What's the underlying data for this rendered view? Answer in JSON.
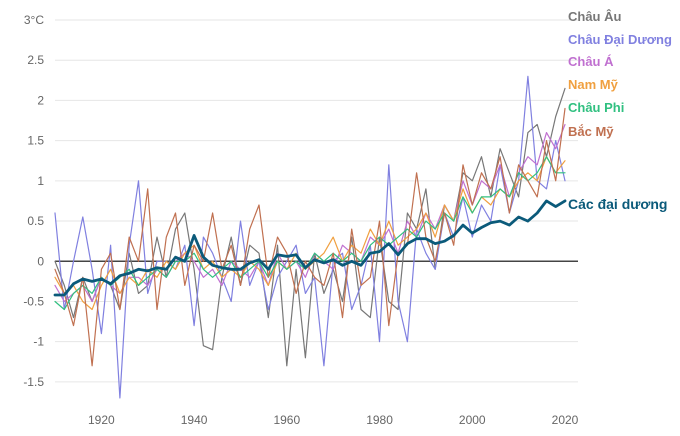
{
  "chart_data": {
    "type": "line",
    "title": "",
    "xlabel": "",
    "ylabel": "",
    "xlim": [
      1910,
      2020
    ],
    "ylim": [
      -1.75,
      3
    ],
    "y_unit_label": "°C",
    "grid": true,
    "legend_position": "right, labels at line ends",
    "x_ticks": [
      {
        "value": 1920,
        "label": "1920"
      },
      {
        "value": 1940,
        "label": "1940"
      },
      {
        "value": 1960,
        "label": "1960"
      },
      {
        "value": 1980,
        "label": "1980"
      },
      {
        "value": 2000,
        "label": "2000"
      },
      {
        "value": 2020,
        "label": "2020"
      }
    ],
    "y_ticks": [
      {
        "value": 3,
        "label": "3°C"
      },
      {
        "value": 2.5,
        "label": "2.5"
      },
      {
        "value": 2,
        "label": "2"
      },
      {
        "value": 1.5,
        "label": "1.5"
      },
      {
        "value": 1,
        "label": "1"
      },
      {
        "value": 0.5,
        "label": "0.5"
      },
      {
        "value": 0,
        "label": "0"
      },
      {
        "value": -0.5,
        "label": "-0.5"
      },
      {
        "value": -1,
        "label": "-1"
      },
      {
        "value": -1.5,
        "label": "-1.5"
      }
    ],
    "x": [
      1910,
      1912,
      1914,
      1916,
      1918,
      1920,
      1922,
      1924,
      1926,
      1928,
      1930,
      1932,
      1934,
      1936,
      1938,
      1940,
      1942,
      1944,
      1946,
      1948,
      1950,
      1952,
      1954,
      1956,
      1958,
      1960,
      1962,
      1964,
      1966,
      1968,
      1970,
      1972,
      1974,
      1976,
      1978,
      1980,
      1982,
      1984,
      1986,
      1988,
      1990,
      1992,
      1994,
      1996,
      1998,
      2000,
      2002,
      2004,
      2006,
      2008,
      2010,
      2012,
      2014,
      2016,
      2018,
      2020
    ],
    "series": [
      {
        "name": "Châu Âu",
        "color": "#777777",
        "width": 1.2,
        "values": [
          0.0,
          -0.3,
          -0.7,
          -0.2,
          -0.5,
          -0.2,
          -0.3,
          -0.6,
          0.1,
          -0.4,
          -0.3,
          0.3,
          -0.2,
          0.4,
          0.6,
          -0.1,
          -1.05,
          -1.1,
          -0.2,
          0.3,
          -0.3,
          0.2,
          0.1,
          -0.7,
          0.2,
          -1.3,
          -0.1,
          -1.2,
          0.1,
          -0.4,
          -0.1,
          -0.5,
          0.3,
          -0.6,
          -0.7,
          0.3,
          -0.5,
          -0.6,
          0.6,
          0.4,
          0.9,
          -0.1,
          0.7,
          0.5,
          1.1,
          1.0,
          1.3,
          0.8,
          1.4,
          1.1,
          0.8,
          1.6,
          1.7,
          1.3,
          1.8,
          2.15
        ]
      },
      {
        "name": "Châu Đại Dương",
        "color": "#8080e0",
        "width": 1.2,
        "values": [
          0.6,
          -0.6,
          0.0,
          0.55,
          -0.1,
          -0.9,
          0.2,
          -1.7,
          0.2,
          1.0,
          -0.4,
          0.0,
          0.0,
          -0.1,
          0.2,
          -0.8,
          0.3,
          0.1,
          -0.2,
          -0.5,
          0.5,
          -0.3,
          0.0,
          -0.6,
          -0.2,
          0.0,
          0.2,
          -0.4,
          -0.2,
          -1.3,
          0.0,
          0.1,
          -0.6,
          -0.3,
          0.2,
          -1.0,
          1.2,
          -0.5,
          -1.0,
          0.4,
          0.1,
          -0.1,
          0.6,
          0.3,
          0.8,
          0.3,
          0.7,
          0.5,
          1.2,
          0.6,
          1.0,
          2.3,
          1.0,
          0.9,
          1.5,
          1.0
        ]
      },
      {
        "name": "Châu Á",
        "color": "#c070d0",
        "width": 1.2,
        "values": [
          -0.3,
          -0.5,
          -0.4,
          -0.3,
          -0.5,
          -0.2,
          -0.3,
          -0.4,
          -0.2,
          -0.2,
          -0.3,
          -0.1,
          -0.2,
          0.0,
          0.1,
          0.0,
          -0.2,
          -0.1,
          -0.3,
          0.0,
          -0.1,
          -0.2,
          0.0,
          -0.3,
          0.1,
          -0.1,
          0.0,
          -0.2,
          0.1,
          0.0,
          -0.1,
          0.2,
          0.1,
          0.0,
          0.3,
          0.2,
          0.4,
          0.1,
          0.5,
          0.3,
          0.6,
          0.4,
          0.7,
          0.5,
          1.0,
          0.7,
          1.0,
          0.9,
          1.2,
          0.8,
          1.1,
          1.3,
          1.2,
          1.6,
          1.4,
          1.7
        ]
      },
      {
        "name": "Nam Mỹ",
        "color": "#f0a040",
        "width": 1.2,
        "values": [
          -0.2,
          -0.4,
          -0.3,
          -0.5,
          -0.6,
          -0.3,
          -0.1,
          -0.4,
          -0.2,
          -0.3,
          -0.1,
          -0.2,
          0.0,
          -0.1,
          0.1,
          0.2,
          -0.1,
          0.0,
          -0.2,
          -0.1,
          -0.2,
          0.0,
          -0.1,
          -0.3,
          0.0,
          -0.1,
          0.1,
          -0.1,
          0.0,
          0.1,
          0.3,
          0.0,
          0.2,
          0.1,
          0.4,
          0.2,
          0.5,
          0.2,
          0.3,
          0.4,
          0.6,
          0.3,
          0.7,
          0.5,
          0.9,
          0.6,
          0.8,
          0.7,
          0.9,
          0.8,
          1.0,
          1.1,
          1.0,
          1.3,
          1.1,
          1.25
        ]
      },
      {
        "name": "Châu Phi",
        "color": "#30c080",
        "width": 1.2,
        "values": [
          -0.5,
          -0.6,
          -0.4,
          -0.3,
          -0.4,
          -0.2,
          -0.3,
          -0.2,
          -0.1,
          -0.3,
          -0.2,
          -0.1,
          -0.2,
          0.0,
          0.0,
          0.1,
          -0.1,
          -0.2,
          -0.1,
          0.0,
          -0.2,
          -0.1,
          0.0,
          -0.2,
          0.0,
          -0.1,
          0.0,
          -0.1,
          0.1,
          0.0,
          0.1,
          0.0,
          0.1,
          0.0,
          0.2,
          0.3,
          0.2,
          0.3,
          0.4,
          0.3,
          0.5,
          0.4,
          0.6,
          0.5,
          0.8,
          0.6,
          0.8,
          0.8,
          0.9,
          0.8,
          1.1,
          1.0,
          1.1,
          1.3,
          1.1,
          1.1
        ]
      },
      {
        "name": "Bắc Mỹ",
        "color": "#c07050",
        "width": 1.2,
        "values": [
          -0.1,
          -0.4,
          -0.8,
          -0.2,
          -1.3,
          -0.1,
          0.1,
          -0.6,
          0.3,
          0.0,
          0.9,
          -0.6,
          0.3,
          0.6,
          -0.3,
          0.2,
          0.0,
          0.6,
          -0.1,
          0.2,
          -0.3,
          0.4,
          0.7,
          -0.2,
          0.3,
          0.1,
          -0.4,
          0.0,
          -0.2,
          -0.3,
          0.1,
          -0.7,
          0.4,
          -0.3,
          -0.2,
          0.5,
          -0.8,
          0.1,
          0.2,
          1.1,
          0.3,
          0.0,
          0.6,
          0.2,
          1.2,
          0.7,
          1.1,
          0.9,
          1.3,
          0.6,
          1.2,
          1.0,
          0.8,
          1.5,
          1.0,
          1.9
        ]
      },
      {
        "name": "Các đại dương",
        "color": "#0b5a7a",
        "width": 2.8,
        "values": [
          -0.42,
          -0.42,
          -0.28,
          -0.22,
          -0.25,
          -0.22,
          -0.28,
          -0.18,
          -0.15,
          -0.1,
          -0.12,
          -0.08,
          -0.1,
          0.05,
          0.0,
          0.32,
          0.05,
          -0.05,
          -0.08,
          -0.1,
          -0.1,
          -0.02,
          0.02,
          -0.1,
          0.08,
          0.06,
          0.08,
          -0.08,
          0.02,
          -0.02,
          0.02,
          -0.05,
          0.0,
          -0.05,
          0.1,
          0.12,
          0.22,
          0.08,
          0.22,
          0.28,
          0.28,
          0.22,
          0.25,
          0.32,
          0.45,
          0.35,
          0.42,
          0.48,
          0.5,
          0.45,
          0.55,
          0.5,
          0.6,
          0.75,
          0.68,
          0.75
        ]
      }
    ]
  }
}
